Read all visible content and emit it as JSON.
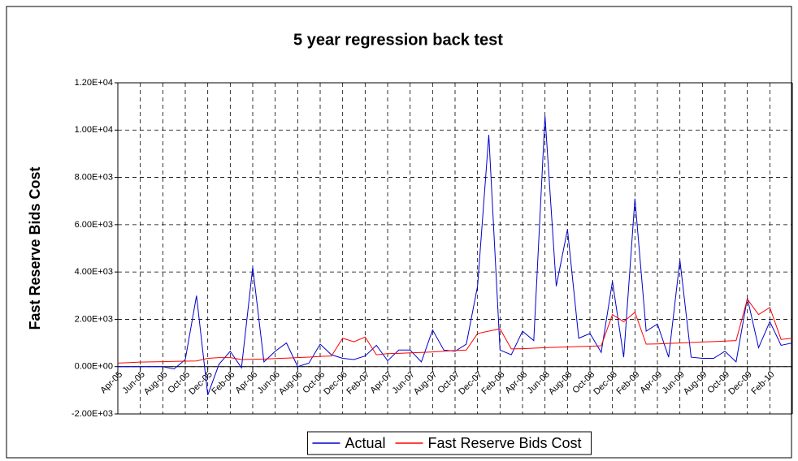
{
  "chart_data": {
    "type": "line",
    "title": "5 year regression back test",
    "y_label": "Fast Reserve Bids Cost",
    "categories": [
      "Apr-05",
      null,
      "Jun-05",
      null,
      "Aug-05",
      null,
      "Oct-05",
      null,
      "Dec-05",
      null,
      "Feb-06",
      null,
      "Apr-06",
      null,
      "Jun-06",
      null,
      "Aug-06",
      null,
      "Oct-06",
      null,
      "Dec-06",
      null,
      "Feb-07",
      null,
      "Apr-07",
      null,
      "Jun-07",
      null,
      "Aug-07",
      null,
      "Oct-07",
      null,
      "Dec-07",
      null,
      "Feb-08",
      null,
      "Apr-08",
      null,
      "Jun-08",
      null,
      "Aug-08",
      null,
      "Oct-08",
      null,
      "Dec-08",
      null,
      "Feb-09",
      null,
      "Apr-09",
      null,
      "Jun-09",
      null,
      "Aug-09",
      null,
      "Oct-09",
      null,
      "Dec-09",
      null,
      "Feb-10",
      null,
      null
    ],
    "series": [
      {
        "name": "Actual",
        "color": "#0000cc",
        "values": [
          0,
          0,
          0,
          0,
          0,
          -100,
          300,
          3000,
          -1200,
          100,
          650,
          -50,
          4200,
          200,
          650,
          1000,
          0,
          150,
          950,
          500,
          350,
          300,
          450,
          900,
          250,
          700,
          700,
          200,
          1550,
          700,
          650,
          950,
          3400,
          9800,
          700,
          500,
          1500,
          1100,
          10600,
          3400,
          5800,
          1200,
          1400,
          600,
          3600,
          400,
          7100,
          1500,
          1800,
          400,
          4500,
          400,
          350,
          350,
          650,
          200,
          2900,
          800,
          1900,
          900,
          1000
        ]
      },
      {
        "name": "Fast Reserve Bids Cost",
        "color": "#ff0000",
        "values": [
          150,
          170,
          190,
          200,
          210,
          220,
          230,
          240,
          350,
          380,
          380,
          300,
          310,
          320,
          340,
          360,
          380,
          400,
          430,
          450,
          1200,
          1050,
          1250,
          500,
          550,
          560,
          580,
          600,
          620,
          650,
          680,
          700,
          1400,
          1500,
          1600,
          750,
          760,
          780,
          800,
          820,
          830,
          850,
          860,
          880,
          2200,
          1900,
          2300,
          950,
          960,
          980,
          1000,
          1020,
          1040,
          1060,
          1080,
          1100,
          2850,
          2200,
          2500,
          1150,
          1200
        ]
      }
    ],
    "ylim": [
      -2000,
      12000
    ],
    "yticks": [
      {
        "value": -2000,
        "label": "-2.00E+03"
      },
      {
        "value": 0,
        "label": "0.00E+00"
      },
      {
        "value": 2000,
        "label": "2.00E+03"
      },
      {
        "value": 4000,
        "label": "4.00E+03"
      },
      {
        "value": 6000,
        "label": "6.00E+03"
      },
      {
        "value": 8000,
        "label": "8.00E+03"
      },
      {
        "value": 10000,
        "label": "1.00E+04"
      },
      {
        "value": 12000,
        "label": "1.20E+04"
      }
    ],
    "grid": true,
    "legend": "bottom"
  }
}
